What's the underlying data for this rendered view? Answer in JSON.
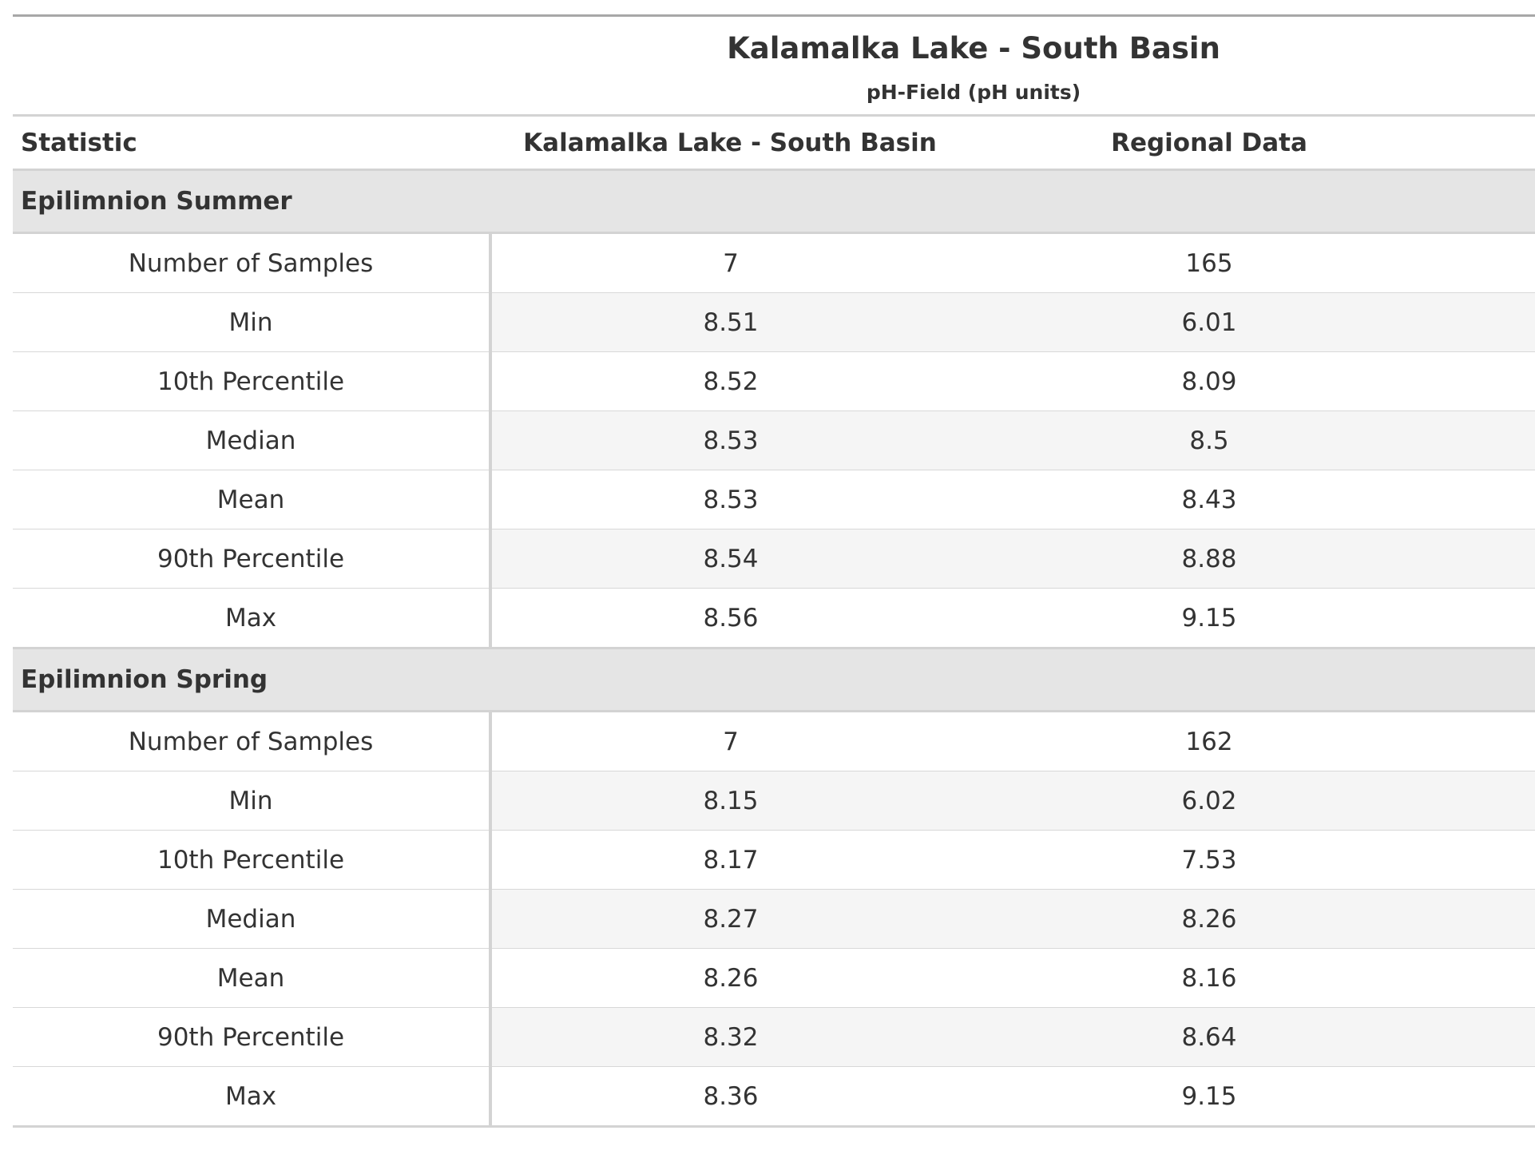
{
  "title": "Kalamalka Lake - South Basin",
  "subtitle": "pH-Field (pH units)",
  "columns": {
    "statistic": "Statistic",
    "site": "Kalamalka Lake - South Basin",
    "regional": "Regional Data"
  },
  "groups": [
    {
      "name": "Epilimnion Summer",
      "rows": [
        {
          "statistic": "Number of Samples",
          "site": "7",
          "regional": "165"
        },
        {
          "statistic": "Min",
          "site": "8.51",
          "regional": "6.01"
        },
        {
          "statistic": "10th Percentile",
          "site": "8.52",
          "regional": "8.09"
        },
        {
          "statistic": "Median",
          "site": "8.53",
          "regional": "8.5"
        },
        {
          "statistic": "Mean",
          "site": "8.53",
          "regional": "8.43"
        },
        {
          "statistic": "90th Percentile",
          "site": "8.54",
          "regional": "8.88"
        },
        {
          "statistic": "Max",
          "site": "8.56",
          "regional": "9.15"
        }
      ]
    },
    {
      "name": "Epilimnion Spring",
      "rows": [
        {
          "statistic": "Number of Samples",
          "site": "7",
          "regional": "162"
        },
        {
          "statistic": "Min",
          "site": "8.15",
          "regional": "6.02"
        },
        {
          "statistic": "10th Percentile",
          "site": "8.17",
          "regional": "7.53"
        },
        {
          "statistic": "Median",
          "site": "8.27",
          "regional": "8.26"
        },
        {
          "statistic": "Mean",
          "site": "8.26",
          "regional": "8.16"
        },
        {
          "statistic": "90th Percentile",
          "site": "8.32",
          "regional": "8.64"
        },
        {
          "statistic": "Max",
          "site": "8.36",
          "regional": "9.15"
        }
      ]
    }
  ]
}
